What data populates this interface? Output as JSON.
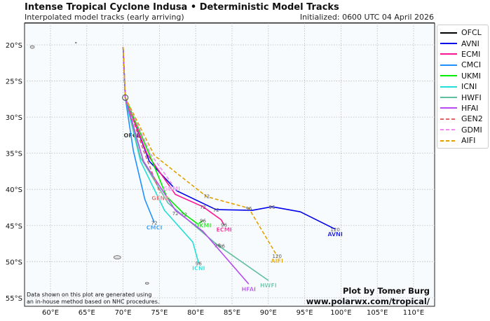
{
  "header": {
    "title": "Intense Tropical Cyclone Indusa • Deterministic Model Tracks",
    "subtitle": "Interpolated model tracks (early arriving)",
    "initialized": "Initialized: 0600 UTC 04 April 2026"
  },
  "footer": {
    "note_line1": "Data shown on this plot are generated using",
    "note_line2": "an in-house method based on NHC procedures.",
    "credit_line1": "Plot by Tomer Burg",
    "credit_line2": "www.polarwx.com/tropical/"
  },
  "chart_data": {
    "type": "line",
    "xlim": [
      55,
      112
    ],
    "ylim": [
      17,
      56
    ],
    "x_ticks": [
      "60°E",
      "65°E",
      "70°E",
      "75°E",
      "80°E",
      "85°E",
      "90°E",
      "95°E",
      "100°E",
      "105°E",
      "110°E"
    ],
    "y_ticks": [
      "20°S",
      "25°S",
      "30°S",
      "35°S",
      "40°S",
      "45°S",
      "50°S",
      "55°S"
    ],
    "grid": true,
    "legend_position": "right",
    "series": [
      {
        "name": "OFCL",
        "color": "#000000",
        "dash": false,
        "points": [
          [
            70.0,
            20.3
          ],
          [
            70.3,
            27.3
          ],
          [
            71.6,
            32.5
          ]
        ]
      },
      {
        "name": "AVNI",
        "color": "#0000ee",
        "dash": false,
        "points": [
          [
            70.0,
            20.3
          ],
          [
            70.3,
            27.3
          ],
          [
            73.6,
            36.1
          ],
          [
            77.4,
            40.2
          ],
          [
            82.8,
            42.8
          ],
          [
            87.8,
            42.9
          ],
          [
            90.5,
            42.4
          ],
          [
            94.4,
            43.1
          ],
          [
            99.2,
            45.5
          ]
        ],
        "hours": [
          [
            "72",
            [
              82.8,
              42.8
            ]
          ],
          [
            "96",
            [
              90.5,
              42.4
            ]
          ],
          [
            "120",
            [
              99.2,
              45.5
            ]
          ]
        ]
      },
      {
        "name": "ECMI",
        "color": "#ff1493",
        "dash": false,
        "points": [
          [
            70.0,
            20.3
          ],
          [
            70.3,
            27.3
          ],
          [
            73.3,
            35.1
          ],
          [
            77.2,
            40.7
          ],
          [
            81.0,
            42.4
          ],
          [
            83.5,
            44.2
          ],
          [
            83.9,
            44.9
          ]
        ],
        "hours": [
          [
            "72",
            [
              81.0,
              42.4
            ]
          ],
          [
            "96",
            [
              83.9,
              44.9
            ]
          ]
        ]
      },
      {
        "name": "CMCI",
        "color": "#1e90ff",
        "dash": false,
        "points": [
          [
            70.0,
            20.3
          ],
          [
            70.3,
            27.3
          ],
          [
            71.4,
            34.6
          ],
          [
            73.0,
            41.4
          ],
          [
            74.3,
            44.6
          ]
        ],
        "hours": [
          [
            "72",
            [
              74.3,
              44.6
            ]
          ]
        ]
      },
      {
        "name": "UKMI",
        "color": "#00ee00",
        "dash": false,
        "points": [
          [
            70.0,
            20.3
          ],
          [
            70.3,
            27.3
          ],
          [
            73.8,
            35.6
          ],
          [
            76.0,
            41.0
          ],
          [
            78.4,
            43.4
          ],
          [
            80.3,
            44.8
          ],
          [
            81.0,
            44.3
          ]
        ],
        "hours": [
          [
            "72",
            [
              78.4,
              43.4
            ]
          ],
          [
            "96",
            [
              81.0,
              44.3
            ]
          ]
        ]
      },
      {
        "name": "ICNI",
        "color": "#20e0d8",
        "dash": false,
        "points": [
          [
            70.0,
            20.3
          ],
          [
            70.3,
            27.3
          ],
          [
            72.4,
            36.1
          ],
          [
            75.7,
            42.9
          ],
          [
            79.6,
            47.3
          ],
          [
            80.4,
            50.2
          ]
        ],
        "hours": [
          [
            "96",
            [
              80.4,
              50.2
            ]
          ]
        ]
      },
      {
        "name": "HWFI",
        "color": "#5fbf9f",
        "dash": false,
        "points": [
          [
            70.0,
            20.3
          ],
          [
            70.3,
            27.3
          ],
          [
            72.4,
            35.6
          ],
          [
            76.2,
            41.9
          ],
          [
            83.0,
            47.7
          ],
          [
            90.0,
            52.6
          ]
        ],
        "hours": [
          [
            "72",
            [
              77.2,
              43.3
            ]
          ],
          [
            "96",
            [
              83.0,
              47.7
            ]
          ]
        ]
      },
      {
        "name": "HFAI",
        "color": "#b44cf0",
        "dash": false,
        "points": [
          [
            70.0,
            20.3
          ],
          [
            70.3,
            27.3
          ],
          [
            72.8,
            36.1
          ],
          [
            77.2,
            42.9
          ],
          [
            81.0,
            45.8
          ],
          [
            87.3,
            53.1
          ]
        ],
        "hours": [
          [
            "96",
            [
              83.6,
              47.8
            ]
          ]
        ]
      },
      {
        "name": "GEN2",
        "color": "#e06666",
        "dash": true,
        "points": [
          [
            70.0,
            20.3
          ],
          [
            70.3,
            27.3
          ],
          [
            72.8,
            34.6
          ],
          [
            75.1,
            40.5
          ]
        ]
      },
      {
        "name": "GDMI",
        "color": "#f08cf0",
        "dash": true,
        "points": [
          [
            70.0,
            20.3
          ],
          [
            70.3,
            27.3
          ],
          [
            73.8,
            35.1
          ],
          [
            76.7,
            39.2
          ]
        ]
      },
      {
        "name": "AIFI",
        "color": "#e0a000",
        "dash": true,
        "points": [
          [
            70.0,
            20.3
          ],
          [
            70.3,
            27.3
          ],
          [
            74.3,
            35.3
          ],
          [
            77.7,
            38.0
          ],
          [
            81.5,
            41.0
          ],
          [
            87.3,
            42.6
          ],
          [
            91.2,
            49.2
          ]
        ],
        "hours": [
          [
            "72",
            [
              81.5,
              40.9
            ]
          ],
          [
            "96",
            [
              87.3,
              42.6
            ]
          ],
          [
            "120",
            [
              91.2,
              49.2
            ]
          ]
        ]
      }
    ]
  }
}
